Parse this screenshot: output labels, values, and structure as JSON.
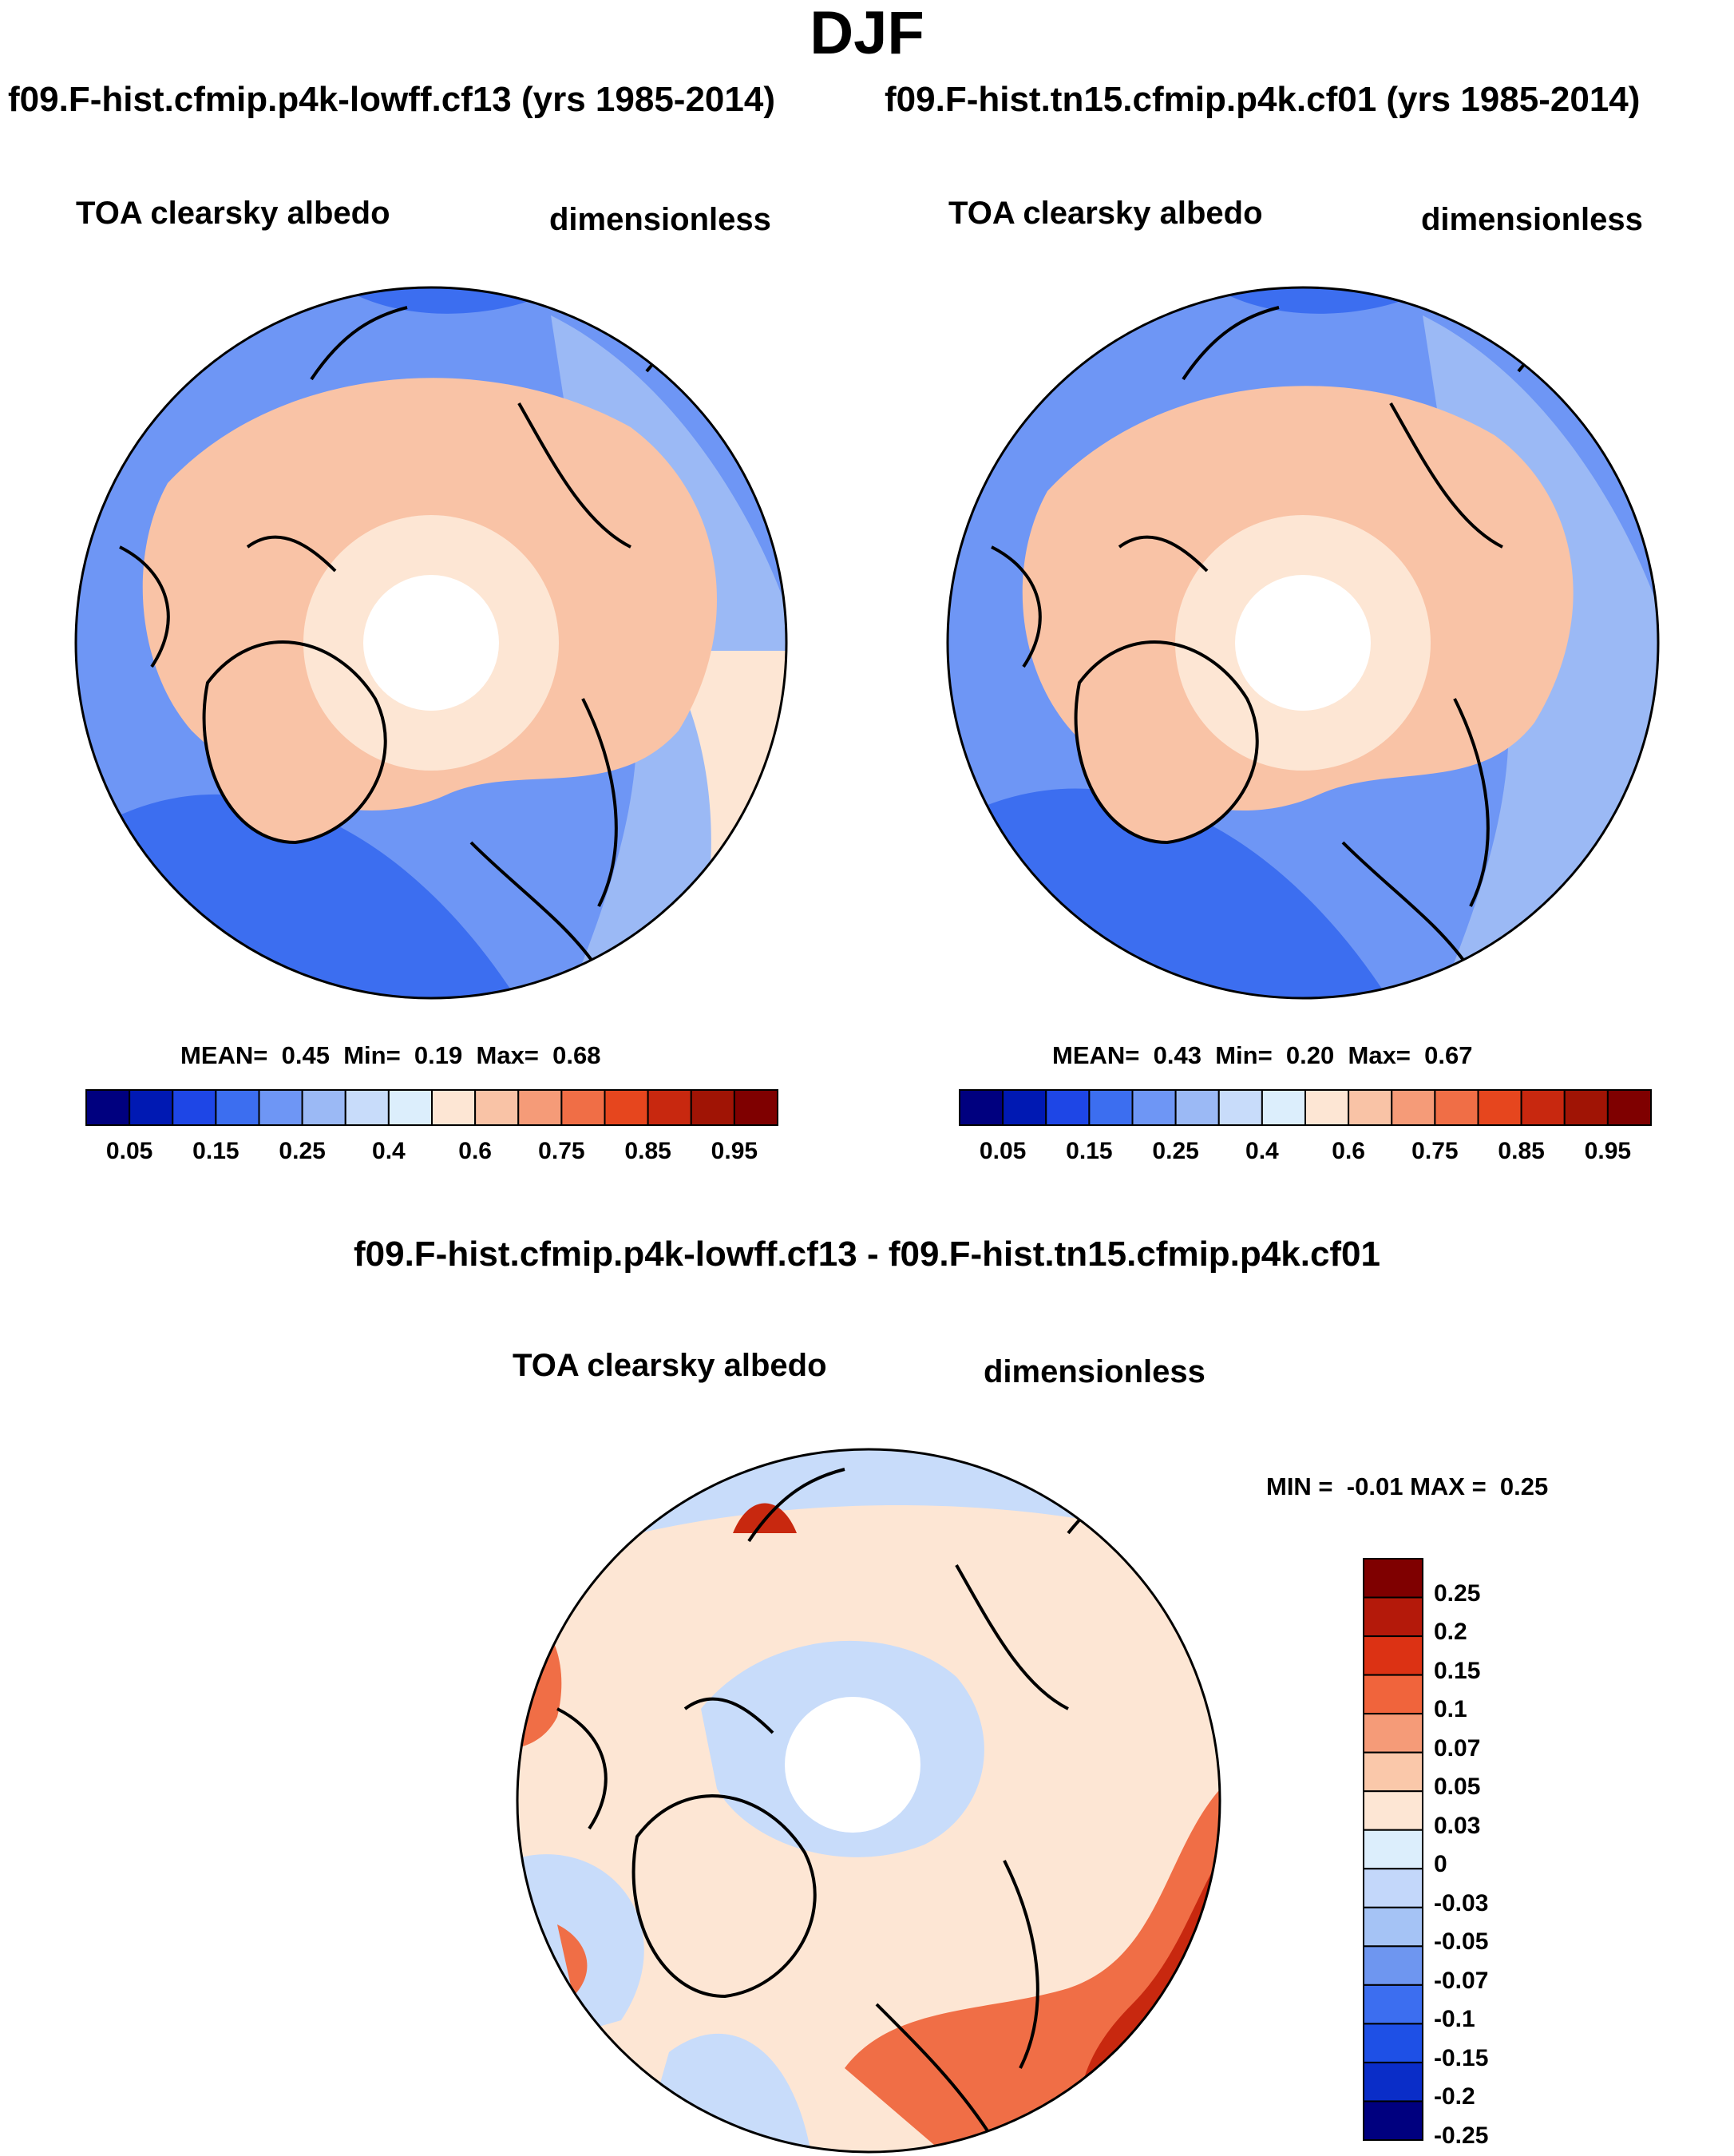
{
  "season": "DJF",
  "panels": [
    {
      "case_title": "f09.F-hist.cfmip.p4k-lowff.cf13 (yrs 1985-2014)",
      "variable": "TOA clearsky albedo",
      "units": "dimensionless",
      "stats": {
        "mean_label": "MEAN=",
        "mean": "0.45",
        "min_label": "Min=",
        "min": "0.19",
        "max_label": "Max=",
        "max": "0.68"
      }
    },
    {
      "case_title": "f09.F-hist.tn15.cfmip.p4k.cf01 (yrs 1985-2014)",
      "variable": "TOA clearsky albedo",
      "units": "dimensionless",
      "stats": {
        "mean_label": "MEAN=",
        "mean": "0.43",
        "min_label": "Min=",
        "min": "0.20",
        "max_label": "Max=",
        "max": "0.67"
      }
    }
  ],
  "diff_panel": {
    "title": "f09.F-hist.cfmip.p4k-lowff.cf13 - f09.F-hist.tn15.cfmip.p4k.cf01",
    "variable": "TOA clearsky albedo",
    "units": "dimensionless",
    "stats": {
      "min_label": "MIN =",
      "min": "-0.01",
      "max_label": "MAX =",
      "max": "0.25"
    }
  },
  "colorbar_abs": {
    "colors": [
      "#00007f",
      "#0019b3",
      "#1e46e6",
      "#3c6ef0",
      "#6e96f5",
      "#9bb9f5",
      "#c8dcfa",
      "#dceefc",
      "#fde6d4",
      "#f9c3a6",
      "#f59b78",
      "#f06e46",
      "#e6461e",
      "#c8280f",
      "#a01405",
      "#7f0000"
    ],
    "tick_labels": [
      "0.05",
      "0.15",
      "0.25",
      "0.4",
      "0.6",
      "0.75",
      "0.85",
      "0.95"
    ]
  },
  "colorbar_diff": {
    "colors_top_to_bottom": [
      "#7f0000",
      "#b4190a",
      "#dc3214",
      "#f0643c",
      "#f59b78",
      "#fac8aa",
      "#fde6d4",
      "#dceefc",
      "#c3d7fa",
      "#a5c3f5",
      "#6e96f0",
      "#3c6ef0",
      "#1e50e6",
      "#0a2dc8",
      "#00007f"
    ],
    "tick_labels": [
      "0.25",
      "0.2",
      "0.15",
      "0.1",
      "0.07",
      "0.05",
      "0.03",
      "0",
      "-0.03",
      "-0.05",
      "-0.07",
      "-0.1",
      "-0.15",
      "-0.2",
      "-0.25"
    ]
  },
  "map_colors": {
    "deep_blue": "#3c6ef0",
    "mid_blue": "#6e96f5",
    "light_blue": "#9bb9f5",
    "pale_blue": "#c8dcfa",
    "pale_peach": "#fde6d4",
    "peach": "#f9c3a6",
    "diff_orange": "#f06e46",
    "diff_red": "#c8280f"
  }
}
